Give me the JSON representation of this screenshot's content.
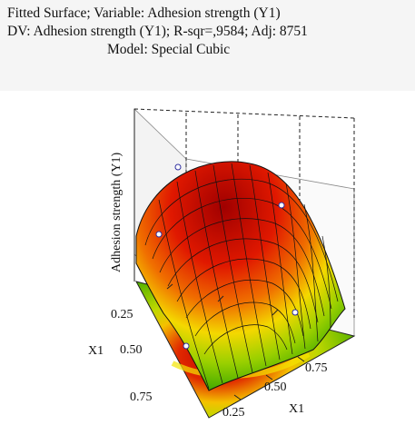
{
  "chart_data": {
    "type": "surface",
    "subtype": "ternary-fitted-surface",
    "title": "Fitted Surface; Variable: Adhesion strength (Y1)",
    "subtitle": "DV: Adhesion strength (Y1); R-sqr=,9584; Adj: 8751",
    "model": "Model: Special Cubic",
    "zlabel": "Adhesion strength (Y1)",
    "axes": [
      {
        "name": "X1",
        "ticks": [
          "0.25",
          "0.50",
          "0.75"
        ]
      },
      {
        "name": "X1",
        "ticks": [
          "0.25",
          "0.50",
          "0.75"
        ]
      }
    ],
    "colors": {
      "high": "#c00000",
      "mid": "#f2e000",
      "low": "#1e9a00",
      "mesh": "#000000"
    }
  }
}
